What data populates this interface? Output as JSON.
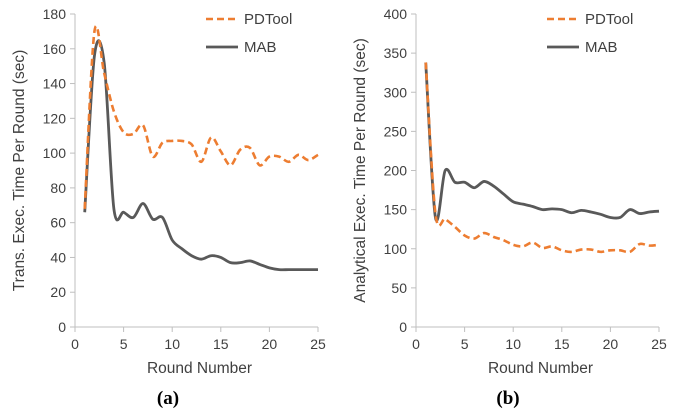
{
  "colors": {
    "pdtool": "#ED7D31",
    "mab": "#595959",
    "axis": "#BFBFBF",
    "text": "#404040"
  },
  "chart_data": [
    {
      "type": "line",
      "panel_label": "(a)",
      "xlabel": "Round Number",
      "ylabel": "Trans. Exec. Time Per Round (sec)",
      "xlim": [
        0,
        25
      ],
      "ylim": [
        0,
        180
      ],
      "xticks": [
        0,
        5,
        10,
        15,
        20,
        25
      ],
      "yticks": [
        0,
        20,
        40,
        60,
        80,
        100,
        120,
        140,
        160,
        180
      ],
      "grid": false,
      "legend": "top-right",
      "x": [
        1,
        2,
        3,
        4,
        5,
        6,
        7,
        8,
        9,
        10,
        11,
        12,
        13,
        14,
        15,
        16,
        17,
        18,
        19,
        20,
        21,
        22,
        23,
        24,
        25
      ],
      "series": [
        {
          "name": "PDTool",
          "style": "dashed",
          "color": "#ED7D31",
          "values": [
            68,
            170,
            146,
            124,
            112,
            111,
            116,
            98,
            106,
            107,
            107,
            105,
            95,
            109,
            101,
            93,
            102,
            103,
            93,
            98,
            98,
            95,
            99,
            96,
            99
          ]
        },
        {
          "name": "MAB",
          "style": "solid",
          "color": "#595959",
          "values": [
            66,
            156,
            152,
            68,
            66,
            63,
            71,
            62,
            63,
            50,
            45,
            41,
            39,
            41,
            40,
            37,
            37,
            38,
            36,
            34,
            33,
            33,
            33,
            33,
            33
          ]
        }
      ]
    },
    {
      "type": "line",
      "panel_label": "(b)",
      "xlabel": "Round Number",
      "ylabel": "Analytical Exec. Time Per Round (sec)",
      "xlim": [
        0,
        25
      ],
      "ylim": [
        0,
        400
      ],
      "xticks": [
        0,
        5,
        10,
        15,
        20,
        25
      ],
      "yticks": [
        0,
        50,
        100,
        150,
        200,
        250,
        300,
        350,
        400
      ],
      "grid": false,
      "legend": "top-right",
      "x": [
        1,
        2,
        3,
        4,
        5,
        6,
        7,
        8,
        9,
        10,
        11,
        12,
        13,
        14,
        15,
        16,
        17,
        18,
        19,
        20,
        21,
        22,
        23,
        24,
        25
      ],
      "series": [
        {
          "name": "PDTool",
          "style": "dashed",
          "color": "#ED7D31",
          "values": [
            338,
            145,
            138,
            128,
            117,
            113,
            120,
            115,
            111,
            105,
            103,
            108,
            101,
            103,
            98,
            96,
            99,
            99,
            96,
            98,
            98,
            96,
            106,
            104,
            105
          ]
        },
        {
          "name": "MAB",
          "style": "solid",
          "color": "#595959",
          "values": [
            338,
            140,
            200,
            185,
            185,
            178,
            186,
            180,
            170,
            160,
            157,
            154,
            150,
            151,
            150,
            146,
            149,
            147,
            144,
            140,
            140,
            150,
            145,
            147,
            148
          ]
        }
      ]
    }
  ]
}
